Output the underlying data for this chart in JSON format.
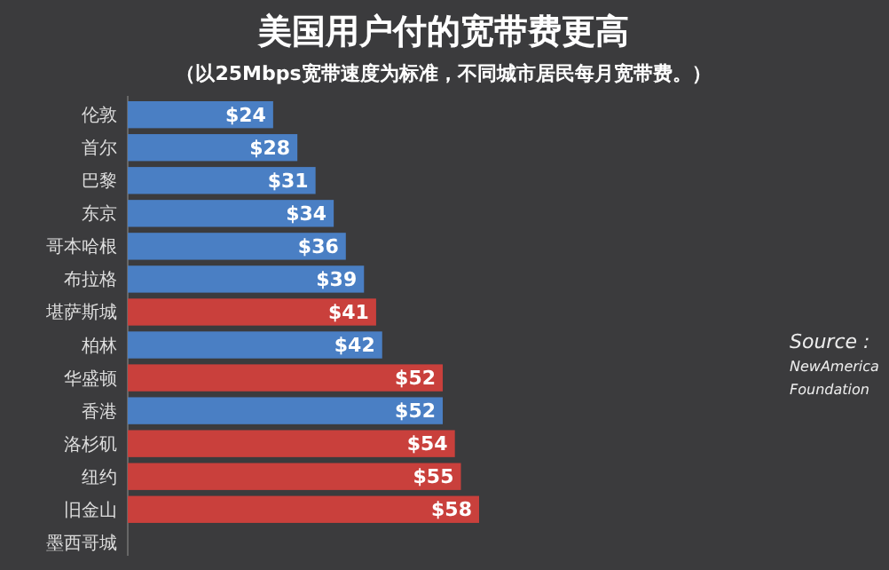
{
  "chart_data": {
    "type": "bar",
    "orientation": "horizontal",
    "title": "美国用户付的宽带费更高",
    "subtitle": "（以25Mbps宽带速度为标准，不同城市居民每月宽带费。）",
    "categories": [
      "伦敦",
      "首尔",
      "巴黎",
      "东京",
      "哥本哈根",
      "布拉格",
      "堪萨斯城",
      "柏林",
      "华盛顿",
      "香港",
      "洛杉矶",
      "纽约",
      "旧金山",
      "墨西哥城"
    ],
    "values": [
      24,
      28,
      31,
      34,
      36,
      39,
      41,
      42,
      52,
      52,
      54,
      55,
      58,
      null
    ],
    "value_labels": [
      "$24",
      "$28",
      "$31",
      "$34",
      "$36",
      "$39",
      "$41",
      "$42",
      "$52",
      "$52",
      "$54",
      "$55",
      "$58",
      null
    ],
    "colors": [
      "#4a7fc4",
      "#4a7fc4",
      "#4a7fc4",
      "#4a7fc4",
      "#4a7fc4",
      "#4a7fc4",
      "#c9403c",
      "#4a7fc4",
      "#c9403c",
      "#4a7fc4",
      "#c9403c",
      "#c9403c",
      "#c9403c",
      null
    ],
    "annotations": [
      "Source : NewAmerica Foundation"
    ]
  }
}
